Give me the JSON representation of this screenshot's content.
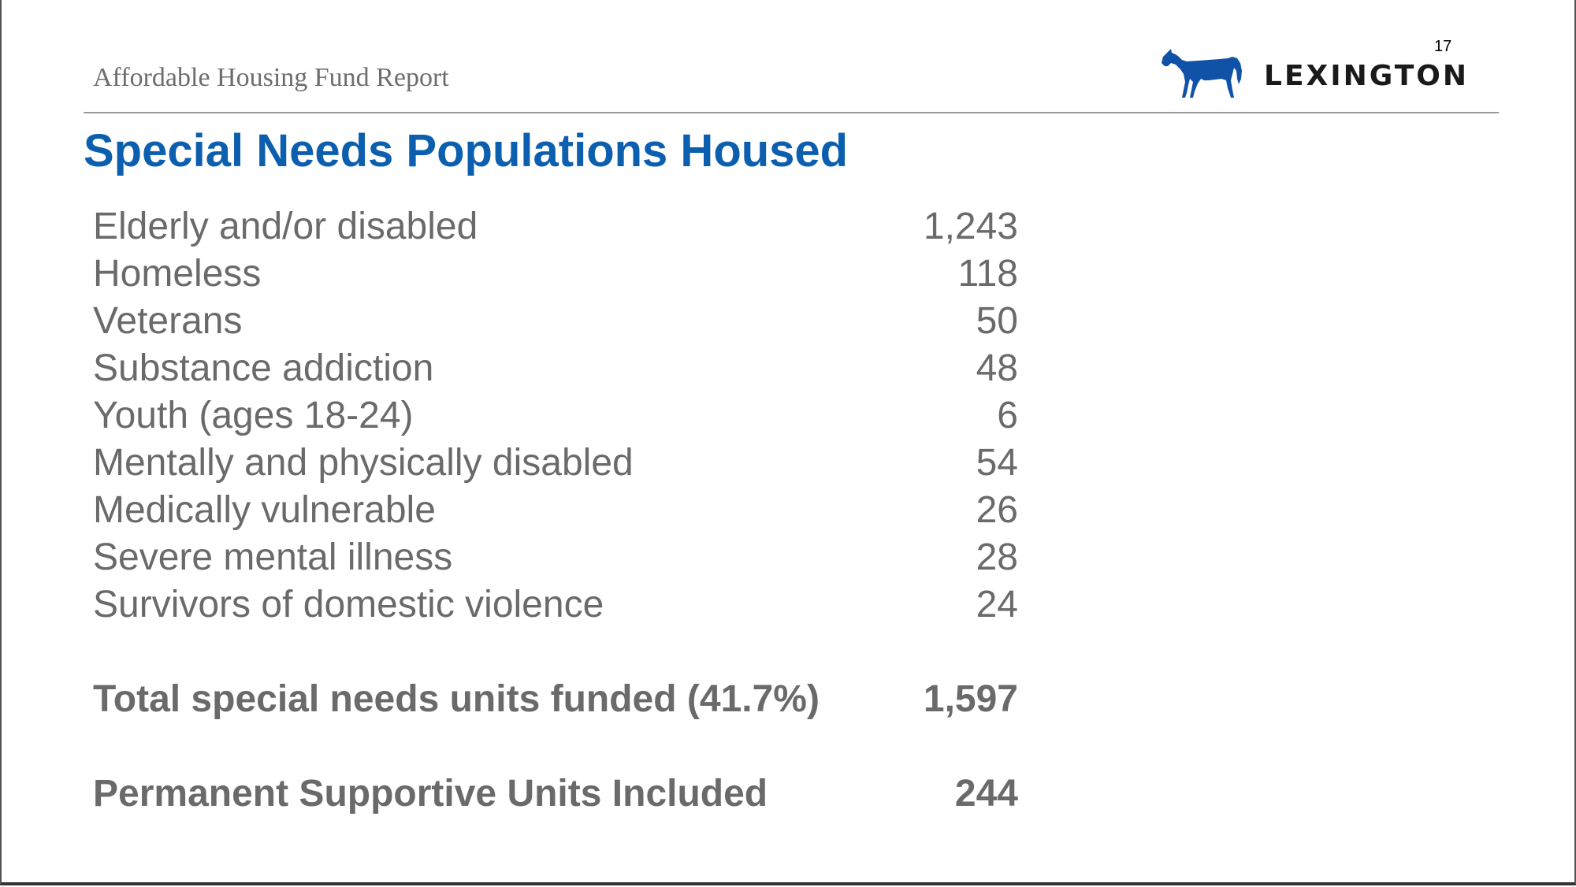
{
  "header": {
    "report_title": "Affordable Housing Fund Report",
    "page_number": "17",
    "logo_text": "LEXINGTON",
    "logo_icon": "horse-icon",
    "brand_color": "#1052a8"
  },
  "main": {
    "title": "Special Needs Populations Housed",
    "title_color": "#0c5fae",
    "rows": [
      {
        "label": "Elderly and/or disabled",
        "value": "1,243"
      },
      {
        "label": "Homeless",
        "value": "118"
      },
      {
        "label": "Veterans",
        "value": "50"
      },
      {
        "label": "Substance addiction",
        "value": "48"
      },
      {
        "label": "Youth (ages 18-24)",
        "value": "6"
      },
      {
        "label": "Mentally and physically disabled",
        "value": "54"
      },
      {
        "label": "Medically vulnerable",
        "value": "26"
      },
      {
        "label": "Severe mental illness",
        "value": "28"
      },
      {
        "label": "Survivors of domestic violence",
        "value": "24"
      }
    ],
    "total": {
      "label": "Total special needs units funded (41.7%)",
      "value": "1,597"
    },
    "permanent_supportive": {
      "label": "Permanent Supportive Units Included",
      "value": "244"
    }
  }
}
